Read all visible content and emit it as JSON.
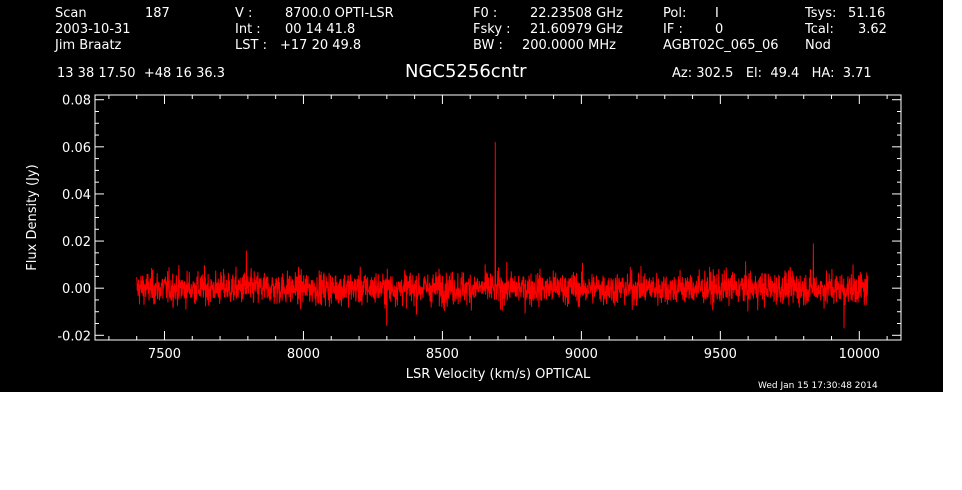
{
  "header": {
    "scan_label": "Scan",
    "scan_value": "187",
    "date": "2003-10-31",
    "observer": "Jim Braatz",
    "v_label": "V :",
    "v_value": "8700.0 OPTI-LSR",
    "int_label": "Int :",
    "int_value": "00 14 41.8",
    "lst_label": "LST :",
    "lst_value": "+17 20 49.8",
    "f0_label": "F0 :",
    "f0_value": "22.23508 GHz",
    "fsky_label": "Fsky :",
    "fsky_value": "21.60979 GHz",
    "bw_label": "BW :",
    "bw_value": "200.0000 MHz",
    "pol_label": "Pol:",
    "pol_value": "I",
    "if_label": "IF :",
    "if_value": "0",
    "project": "AGBT02C_065_06",
    "tsys_label": "Tsys:",
    "tsys_value": "51.16",
    "tcal_label": "Tcal:",
    "tcal_value": "3.62",
    "proc": "Nod",
    "coords": "13 38 17.50  +48 16 36.3",
    "az_el_ha": "Az: 302.5   El:  49.4   HA:  3.71"
  },
  "timestamp": "Wed Jan 15 17:30:48 2014",
  "colors": {
    "background": "#000000",
    "axes": "#ffffff",
    "spectrum": "#ff0000"
  },
  "chart_data": {
    "type": "line",
    "title": "NGC5256cntr",
    "xlabel": "LSR Velocity (km/s) OPTICAL",
    "ylabel": "Flux Density (Jy)",
    "xlim": [
      7250,
      10150
    ],
    "ylim": [
      -0.022,
      0.082
    ],
    "x_ticks": [
      7500,
      8000,
      8500,
      9000,
      9500,
      10000
    ],
    "x_tick_labels": [
      "7500",
      "8000",
      "8500",
      "9000",
      "9500",
      "10000"
    ],
    "y_ticks": [
      -0.02,
      0.0,
      0.02,
      0.04,
      0.06,
      0.08
    ],
    "y_tick_labels": [
      "-0.02",
      "0.00",
      "0.02",
      "0.04",
      "0.06",
      "0.08"
    ],
    "grid": false,
    "series": [
      {
        "color": "#ff0000",
        "x_range": [
          7400,
          10030
        ],
        "noise_level": 0.006,
        "max_excursion": [
          -0.017,
          0.018
        ],
        "peaks": [
          {
            "x": 8690,
            "y": 0.062
          },
          {
            "x": 9835,
            "y": 0.019
          },
          {
            "x": 7795,
            "y": 0.016
          },
          {
            "x": 8300,
            "y": -0.016
          },
          {
            "x": 9945,
            "y": -0.017
          }
        ]
      }
    ]
  }
}
